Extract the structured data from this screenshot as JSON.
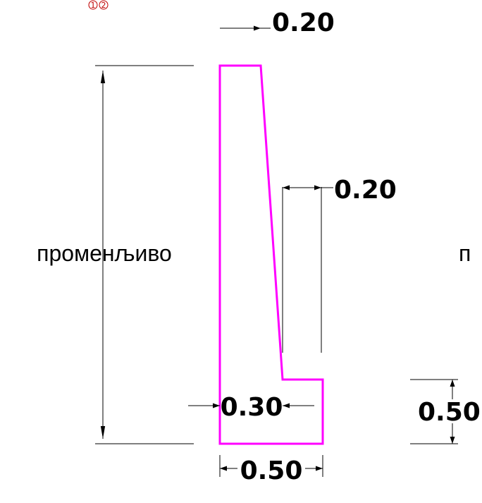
{
  "markers": [
    "1",
    "2"
  ],
  "dimensions": {
    "top_width": "0.20",
    "stem_offset": "0.20",
    "stem_base": "0.30",
    "base_width": "0.50",
    "base_height": "0.50"
  },
  "labels": {
    "left_height": "променљиво",
    "right_height_partial": "п"
  },
  "colors": {
    "outline": "#ff00ff",
    "dimension": "#000000",
    "marker": "#c00000"
  }
}
